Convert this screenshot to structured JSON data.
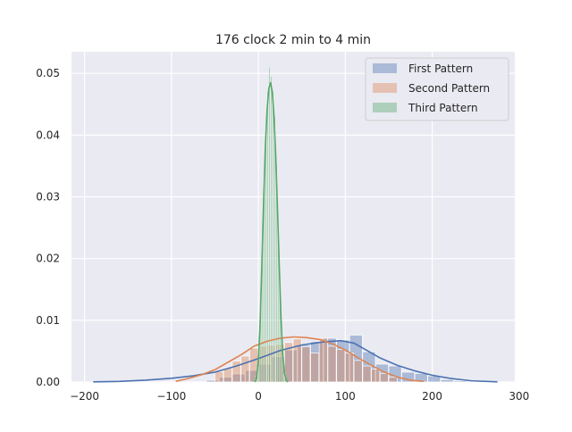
{
  "chart_data": {
    "type": "histogram-kde",
    "title": "176 clock 2 min to 4 min",
    "xlabel": "",
    "ylabel": "",
    "xlim": [
      -215,
      295
    ],
    "ylim": [
      0,
      0.0535
    ],
    "xticks": [
      -200,
      -100,
      0,
      100,
      200,
      300
    ],
    "xtick_labels": [
      "−200",
      "−100",
      "0",
      "100",
      "200",
      "300"
    ],
    "yticks": [
      0,
      0.01,
      0.02,
      0.03,
      0.04,
      0.05
    ],
    "ytick_labels": [
      "0.00",
      "0.01",
      "0.02",
      "0.03",
      "0.04",
      "0.05"
    ],
    "grid": true,
    "legend_position": "top-right",
    "series": [
      {
        "name": "First Pattern",
        "color": "#4c72b0",
        "bins": [
          [
            -60,
            -45,
            0.0003
          ],
          [
            -45,
            -30,
            0.0008
          ],
          [
            -30,
            -15,
            0.0013
          ],
          [
            -15,
            0,
            0.0019
          ],
          [
            0,
            15,
            0.0029
          ],
          [
            15,
            30,
            0.0041
          ],
          [
            30,
            45,
            0.0052
          ],
          [
            45,
            60,
            0.006
          ],
          [
            60,
            75,
            0.0066
          ],
          [
            75,
            90,
            0.0071
          ],
          [
            90,
            105,
            0.0068
          ],
          [
            105,
            120,
            0.0076
          ],
          [
            120,
            135,
            0.0049
          ],
          [
            135,
            150,
            0.0029
          ],
          [
            150,
            165,
            0.0026
          ],
          [
            165,
            180,
            0.0016
          ],
          [
            180,
            195,
            0.0014
          ],
          [
            195,
            210,
            0.001
          ],
          [
            210,
            225,
            0.0004
          ],
          [
            225,
            240,
            0.0002
          ]
        ],
        "kde": [
          [
            -190,
            2e-05
          ],
          [
            -160,
            0.0001
          ],
          [
            -130,
            0.0003
          ],
          [
            -100,
            0.0006
          ],
          [
            -75,
            0.001
          ],
          [
            -50,
            0.0016
          ],
          [
            -25,
            0.0026
          ],
          [
            0,
            0.0038
          ],
          [
            25,
            0.0051
          ],
          [
            50,
            0.006
          ],
          [
            75,
            0.0065
          ],
          [
            95,
            0.0067
          ],
          [
            110,
            0.0063
          ],
          [
            125,
            0.0051
          ],
          [
            140,
            0.0039
          ],
          [
            160,
            0.0027
          ],
          [
            180,
            0.0018
          ],
          [
            200,
            0.0011
          ],
          [
            220,
            0.0006
          ],
          [
            245,
            0.0002
          ],
          [
            275,
            3e-05
          ]
        ]
      },
      {
        "name": "Second Pattern",
        "color": "#dd8452",
        "bins": [
          [
            -50,
            -40,
            0.0017
          ],
          [
            -40,
            -30,
            0.0023
          ],
          [
            -30,
            -20,
            0.0034
          ],
          [
            -20,
            -10,
            0.0042
          ],
          [
            -10,
            0,
            0.0055
          ],
          [
            0,
            10,
            0.0058
          ],
          [
            10,
            20,
            0.006
          ],
          [
            20,
            30,
            0.0061
          ],
          [
            30,
            40,
            0.0064
          ],
          [
            40,
            50,
            0.007
          ],
          [
            50,
            60,
            0.0057
          ],
          [
            60,
            70,
            0.0047
          ],
          [
            70,
            80,
            0.0071
          ],
          [
            80,
            90,
            0.0058
          ],
          [
            90,
            100,
            0.0053
          ],
          [
            100,
            110,
            0.0047
          ],
          [
            110,
            120,
            0.0035
          ],
          [
            120,
            130,
            0.0026
          ],
          [
            130,
            140,
            0.0021
          ],
          [
            140,
            150,
            0.0014
          ],
          [
            150,
            160,
            0.0008
          ]
        ],
        "kde": [
          [
            -95,
            0.0001
          ],
          [
            -80,
            0.0006
          ],
          [
            -65,
            0.0012
          ],
          [
            -50,
            0.002
          ],
          [
            -35,
            0.0032
          ],
          [
            -20,
            0.0044
          ],
          [
            -5,
            0.0058
          ],
          [
            10,
            0.0066
          ],
          [
            25,
            0.0071
          ],
          [
            40,
            0.0073
          ],
          [
            55,
            0.0072
          ],
          [
            70,
            0.0069
          ],
          [
            85,
            0.0062
          ],
          [
            100,
            0.0052
          ],
          [
            115,
            0.0039
          ],
          [
            130,
            0.0027
          ],
          [
            145,
            0.0016
          ],
          [
            160,
            0.0008
          ],
          [
            175,
            0.0003
          ],
          [
            190,
            0.0001
          ]
        ]
      },
      {
        "name": "Third Pattern",
        "color": "#55a868",
        "bins": [
          [
            -4,
            -2,
            0.001
          ],
          [
            -2,
            0,
            0.003
          ],
          [
            0,
            2,
            0.0075
          ],
          [
            2,
            4,
            0.015
          ],
          [
            4,
            6,
            0.0245
          ],
          [
            6,
            8,
            0.033
          ],
          [
            8,
            10,
            0.0405
          ],
          [
            10,
            12,
            0.047
          ],
          [
            12,
            14,
            0.051
          ],
          [
            14,
            16,
            0.0495
          ],
          [
            16,
            18,
            0.047
          ],
          [
            18,
            20,
            0.043
          ],
          [
            20,
            22,
            0.035
          ],
          [
            22,
            24,
            0.0255
          ],
          [
            24,
            26,
            0.0165
          ],
          [
            26,
            28,
            0.009
          ],
          [
            28,
            30,
            0.004
          ],
          [
            30,
            32,
            0.0015
          ]
        ],
        "kde": [
          [
            -4,
            0.0
          ],
          [
            -2,
            0.0008
          ],
          [
            0,
            0.0035
          ],
          [
            2,
            0.0095
          ],
          [
            4,
            0.019
          ],
          [
            6,
            0.029
          ],
          [
            8,
            0.038
          ],
          [
            10,
            0.044
          ],
          [
            12,
            0.0475
          ],
          [
            14,
            0.0485
          ],
          [
            16,
            0.047
          ],
          [
            18,
            0.043
          ],
          [
            20,
            0.0365
          ],
          [
            22,
            0.028
          ],
          [
            24,
            0.019
          ],
          [
            26,
            0.0105
          ],
          [
            28,
            0.0045
          ],
          [
            30,
            0.0015
          ],
          [
            32,
            0.0003
          ],
          [
            34,
            0.0
          ]
        ]
      }
    ]
  }
}
